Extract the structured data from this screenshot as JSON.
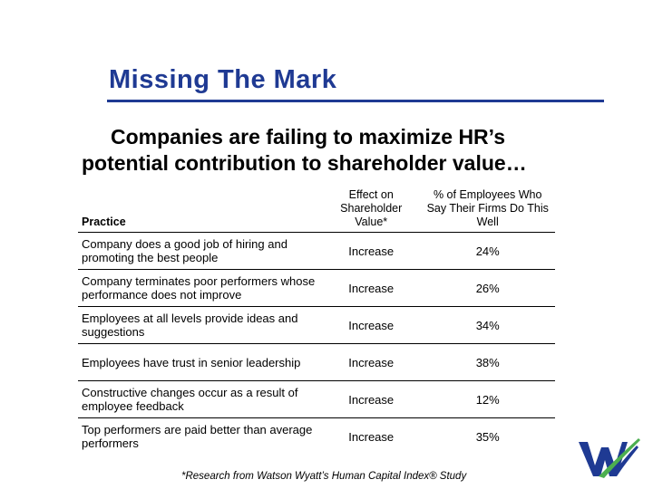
{
  "slide": {
    "title": "Missing The Mark",
    "subtitle_line1": "Companies are failing to maximize HR’s",
    "subtitle_line2": "potential contribution to shareholder value…",
    "footnote": "*Research from Watson Wyatt’s Human Capital Index® Study"
  },
  "table": {
    "headers": {
      "practice": "Practice",
      "effect": "Effect on Shareholder Value*",
      "pct": "% of Employees Who Say Their Firms Do This Well"
    },
    "rows": [
      {
        "practice": "Company does a good job of hiring and promoting the best people",
        "effect": "Increase",
        "pct": "24%"
      },
      {
        "practice": "Company terminates poor performers whose performance does not improve",
        "effect": "Increase",
        "pct": "26%"
      },
      {
        "practice": "Employees at all levels provide ideas and suggestions",
        "effect": "Increase",
        "pct": "34%"
      },
      {
        "practice": "Employees have trust in senior leadership",
        "effect": "Increase",
        "pct": "38%"
      },
      {
        "practice": "Constructive changes occur as a result of employee feedback",
        "effect": "Increase",
        "pct": "12%"
      },
      {
        "practice": "Top performers are paid better than average performers",
        "effect": "Increase",
        "pct": "35%"
      }
    ]
  },
  "colors": {
    "title": "#1f3a93",
    "logo_blue": "#1f3a93",
    "logo_green": "#4caf50"
  },
  "logo": {
    "name": "watson-wyatt-logo-icon"
  }
}
